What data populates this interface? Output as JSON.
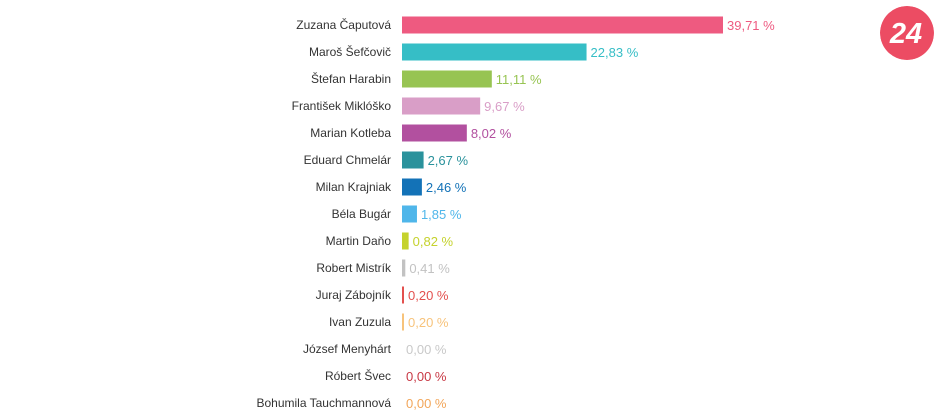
{
  "logo": {
    "text": "24",
    "background": "#ec4c63",
    "foreground": "#ffffff"
  },
  "chart_data": {
    "type": "bar",
    "orientation": "horizontal",
    "title": "",
    "xlabel": "",
    "ylabel": "",
    "xlim": [
      0,
      40
    ],
    "grid": false,
    "legend": "none",
    "value_suffix": " %",
    "categories": [
      "Zuzana Čaputová",
      "Maroš Šefčovič",
      "Štefan Harabin",
      "František Miklóško",
      "Marian Kotleba",
      "Eduard Chmelár",
      "Milan Krajniak",
      "Béla Bugár",
      "Martin Daňo",
      "Robert Mistrík",
      "Juraj Zábojník",
      "Ivan Zuzula",
      "József Menyhárt",
      "Róbert Švec",
      "Bohumila Tauchmannová"
    ],
    "values": [
      39.71,
      22.83,
      11.11,
      9.67,
      8.02,
      2.67,
      2.46,
      1.85,
      0.82,
      0.41,
      0.2,
      0.2,
      0.0,
      0.0,
      0.0
    ],
    "value_labels": [
      "39,71 %",
      "22,83 %",
      "11,11 %",
      "9,67 %",
      "8,02 %",
      "2,67 %",
      "2,46 %",
      "1,85 %",
      "0,82 %",
      "0,41 %",
      "0,20 %",
      "0,20 %",
      "0,00 %",
      "0,00 %",
      "0,00 %"
    ],
    "colors": [
      "#ee5a80",
      "#36bec6",
      "#97c452",
      "#d99ec7",
      "#b2509f",
      "#2a929c",
      "#1372b7",
      "#4fb6ea",
      "#c5d22d",
      "#c2c2c2",
      "#e3504e",
      "#f7c37b",
      "#c9c9c9",
      "#c83945",
      "#f2a65a"
    ]
  }
}
